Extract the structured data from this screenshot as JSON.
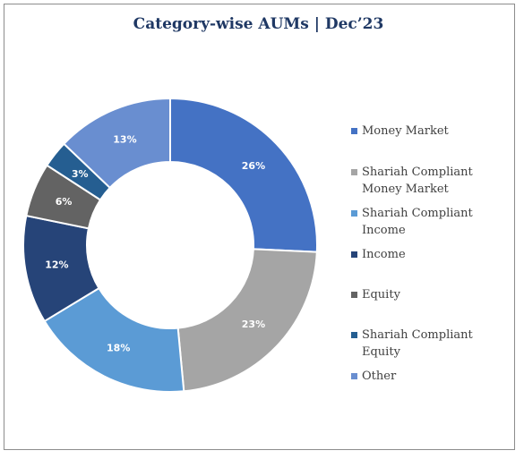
{
  "chart_data": {
    "type": "pie",
    "variant": "donut",
    "title": "Category-wise AUMs | Dec’23",
    "legend_position": "right",
    "slices": [
      {
        "name": "Money Market",
        "value": 26,
        "label": "26%",
        "color": "#4472c4"
      },
      {
        "name": "Shariah Compliant Money Market",
        "value": 23,
        "label": "23%",
        "color": "#a5a5a5"
      },
      {
        "name": "Shariah Compliant Income",
        "value": 18,
        "label": "18%",
        "color": "#5b9bd5"
      },
      {
        "name": "Income",
        "value": 12,
        "label": "12%",
        "color": "#264478"
      },
      {
        "name": "Equity",
        "value": 6,
        "label": "6%",
        "color": "#636363"
      },
      {
        "name": "Shariah Compliant Equity",
        "value": 3,
        "label": "3%",
        "color": "#255e91"
      },
      {
        "name": "Other",
        "value": 13,
        "label": "13%",
        "color": "#698ed0"
      }
    ]
  }
}
